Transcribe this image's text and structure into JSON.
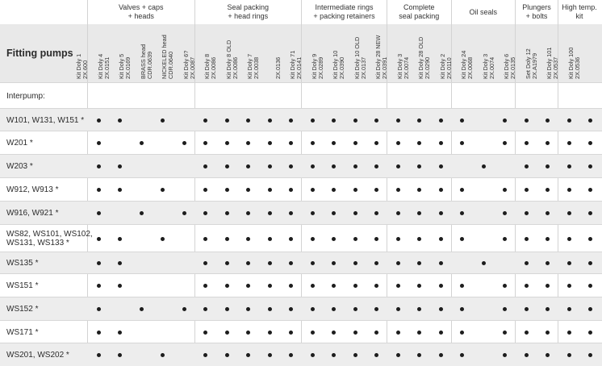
{
  "title": "Fitting pumps",
  "groups": [
    {
      "label": "Valves + caps\n+ heads",
      "cols": [
        0,
        1,
        2,
        3,
        4
      ]
    },
    {
      "label": "Seal packing\n+ head rings",
      "cols": [
        5,
        6,
        7,
        8,
        9
      ]
    },
    {
      "label": "Intermediate rings\n+ packing retainers",
      "cols": [
        10,
        11,
        12,
        13
      ]
    },
    {
      "label": "Complete\nseal packing",
      "cols": [
        14,
        15,
        16
      ]
    },
    {
      "label": "Oil seals",
      "cols": [
        17,
        18,
        19
      ]
    },
    {
      "label": "Plungers\n+ bolts",
      "cols": [
        20,
        21
      ]
    },
    {
      "label": "High temp.\nkit",
      "cols": [
        22,
        23
      ]
    }
  ],
  "columns": [
    "Kit Doly 1\n2X.600",
    "Kit Doly 4\n2X.0151",
    "Kit Doly 5\n2X.0169",
    "BRASS head\nCDR.0639",
    "NICKELED head\nCDR.0640",
    "Kit Doly 6?\n2X.0087",
    "Kit Doly 8\n2X.0086",
    "Kit Doly 8 OLD\n2X.0086",
    "Kit Doly 7\n2X.0038",
    "\n2X.0136",
    "Kit Doly 71\n2X.0141",
    "Kit Doly 9\n2X.0289",
    "Kit Doly 10\n2X.0390",
    "Kit Doly 10 OLD\n2X.0137",
    "Kit Doly 28 NEW\n2X.0391",
    "Kit Doly 3\n2X.0074",
    "Kit Doly 28 OLD\n2X.0290",
    "Kit Doly 2\n2X.0110",
    "Kit Doly 24\n2X.0068",
    "Kit Doly 3\n2X.0074",
    "Kit Doly 6\n2X.0135",
    "Set Doly 12\n2X.A1979",
    "Kit Doly 101\n2X.0537",
    "Kit Doly 100\n2X.0536"
  ],
  "section_label": "Interpump:",
  "rows": [
    {
      "label": "W101, W131, W151 *",
      "dots": [
        0,
        1,
        3,
        5,
        6,
        7,
        8,
        9,
        10,
        11,
        12,
        13,
        14,
        15,
        16,
        17,
        19,
        20,
        21,
        22,
        23
      ]
    },
    {
      "label": "W201 *",
      "dots": [
        0,
        2,
        4,
        5,
        6,
        7,
        8,
        9,
        10,
        11,
        12,
        13,
        14,
        15,
        16,
        17,
        19,
        20,
        21,
        22,
        23
      ]
    },
    {
      "label": "W203 *",
      "dots": [
        0,
        1,
        5,
        6,
        7,
        8,
        9,
        10,
        11,
        12,
        13,
        14,
        15,
        16,
        18,
        20,
        21,
        22,
        23
      ]
    },
    {
      "label": "W912, W913 *",
      "dots": [
        0,
        1,
        3,
        5,
        6,
        7,
        8,
        9,
        10,
        11,
        12,
        13,
        14,
        15,
        16,
        17,
        19,
        20,
        21,
        22,
        23
      ]
    },
    {
      "label": "W916, W921 *",
      "dots": [
        0,
        2,
        4,
        5,
        6,
        7,
        8,
        9,
        10,
        11,
        12,
        13,
        14,
        15,
        16,
        17,
        19,
        20,
        21,
        22,
        23
      ]
    },
    {
      "label": "WS82, WS101, WS102,\nWS131, WS133 *",
      "dots": [
        0,
        1,
        3,
        5,
        6,
        7,
        8,
        9,
        10,
        11,
        12,
        13,
        14,
        15,
        16,
        17,
        19,
        20,
        21,
        22,
        23
      ]
    },
    {
      "label": "WS135 *",
      "dots": [
        0,
        1,
        5,
        6,
        7,
        8,
        9,
        10,
        11,
        12,
        13,
        14,
        15,
        16,
        18,
        20,
        21,
        22,
        23
      ]
    },
    {
      "label": "WS151 *",
      "dots": [
        0,
        1,
        5,
        6,
        7,
        8,
        9,
        10,
        11,
        12,
        13,
        14,
        15,
        16,
        17,
        19,
        20,
        21,
        22,
        23
      ]
    },
    {
      "label": "WS152 *",
      "dots": [
        0,
        2,
        4,
        5,
        6,
        7,
        8,
        9,
        10,
        11,
        12,
        13,
        14,
        15,
        16,
        17,
        19,
        20,
        21,
        22,
        23
      ]
    },
    {
      "label": "WS171 *",
      "dots": [
        0,
        1,
        5,
        6,
        7,
        8,
        9,
        10,
        11,
        12,
        13,
        14,
        15,
        16,
        17,
        19,
        20,
        21,
        22,
        23
      ]
    },
    {
      "label": "WS201, WS202 *",
      "dots": [
        0,
        1,
        3,
        5,
        6,
        7,
        8,
        9,
        10,
        11,
        12,
        13,
        14,
        15,
        16,
        17,
        19,
        20,
        21,
        22,
        23
      ]
    }
  ]
}
